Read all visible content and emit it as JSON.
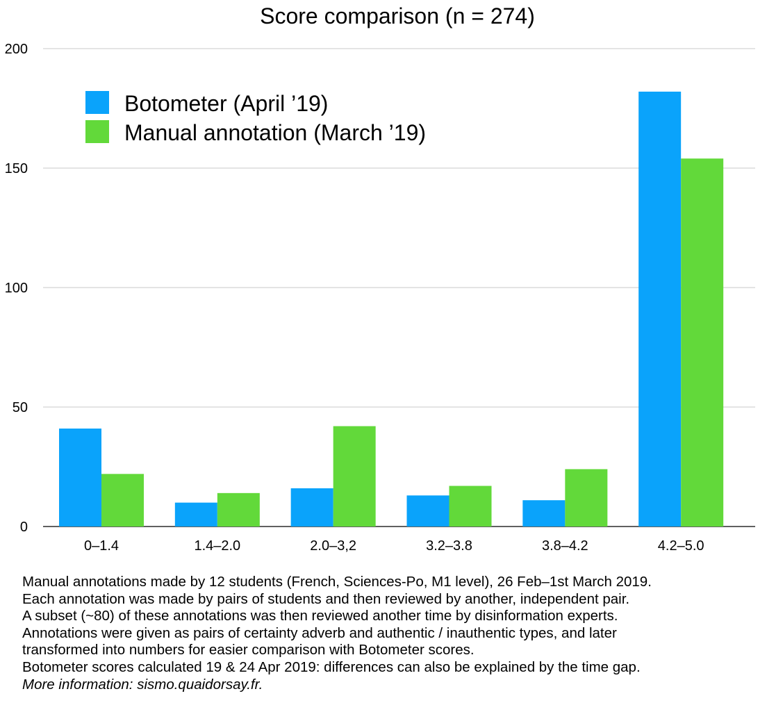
{
  "chart_data": {
    "type": "bar",
    "title": "Score comparison (n = 274)",
    "xlabel": "",
    "ylabel": "",
    "ylim": [
      0,
      200
    ],
    "yticks": [
      0,
      50,
      100,
      150,
      200
    ],
    "grid": true,
    "legend_position": "top-left",
    "categories": [
      "0–1.4",
      "1.4–2.0",
      "2.0–3,2",
      "3.2–3.8",
      "3.8–4.2",
      "4.2–5.0"
    ],
    "series": [
      {
        "name": "Botometer (April ’19)",
        "color": "#0aa3fb",
        "values": [
          41,
          10,
          16,
          13,
          11,
          182
        ]
      },
      {
        "name": "Manual annotation (March ’19)",
        "color": "#62d93a",
        "values": [
          22,
          14,
          42,
          17,
          24,
          154
        ]
      }
    ]
  },
  "notes": [
    "Manual annotations made by 12 students (French, Sciences-Po, M1 level), 26 Feb–1st March 2019.",
    "Each annotation was made by pairs of students and then reviewed by another, independent pair.",
    "A subset (~80) of these annotations was then reviewed another time by disinformation experts.",
    "Annotations were given as pairs of certainty adverb and authentic / inauthentic types, and later",
    "transformed into numbers for easier comparison with Botometer scores.",
    "Botometer scores calculated 19 & 24 Apr 2019: differences can also be explained by the time gap."
  ],
  "more_info": "More information: sismo.quaidorsay.fr."
}
